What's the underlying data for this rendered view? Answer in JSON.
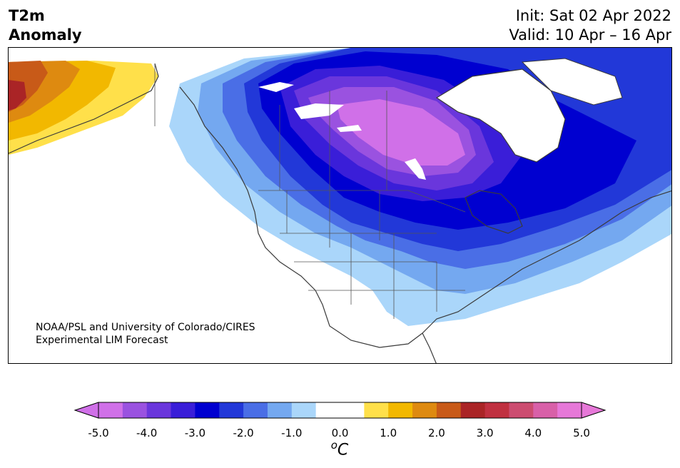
{
  "header": {
    "title_line1": "T2m",
    "title_line2": "Anomaly",
    "init": "Init: Sat 02 Apr 2022",
    "valid": "Valid: 10 Apr – 16 Apr"
  },
  "map": {
    "credit_line1": "NOAA/PSL and University of Colorado/CIRES",
    "credit_line2": "Experimental LIM Forecast"
  },
  "colorbar": {
    "levels": [
      "#d070e8",
      "#9a52e0",
      "#6a36dc",
      "#3a1ed8",
      "#0000d0",
      "#2238d8",
      "#4a6ee6",
      "#74a8f0",
      "#aad6fa",
      "#ffffff",
      "#ffffff",
      "#ffe04a",
      "#f2b800",
      "#de8a10",
      "#c85a18",
      "#aa2426",
      "#c03040",
      "#cc4c70",
      "#d860a8",
      "#e678d8"
    ],
    "ticks": [
      "-5.0",
      "-4.0",
      "-3.0",
      "-2.0",
      "-1.0",
      "0.0",
      "1.0",
      "2.0",
      "3.0",
      "4.0",
      "5.0"
    ],
    "unit_sup": "o",
    "unit": "C"
  }
}
